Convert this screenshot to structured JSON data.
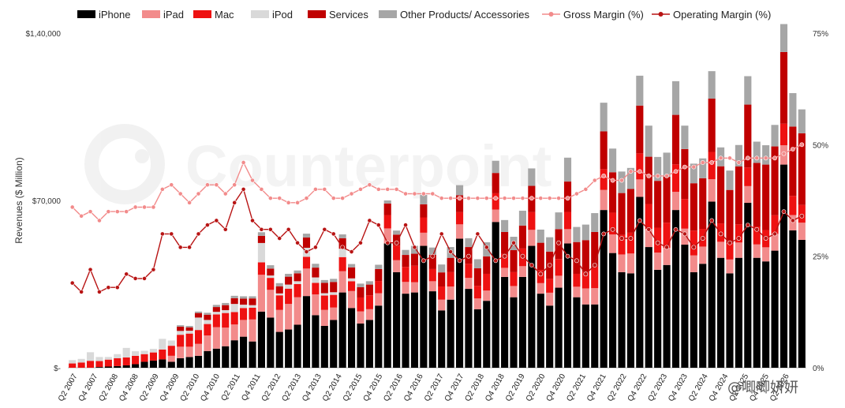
{
  "chart_data": {
    "type": "bar",
    "ylabel": "Revenues ($ Million)",
    "y_ticks": [
      "$-",
      "$70,000",
      "$1,40,000"
    ],
    "y2_ticks": [
      "0%",
      "25%",
      "50%",
      "75%"
    ],
    "ylim": [
      0,
      140000
    ],
    "y2lim": [
      0,
      75
    ],
    "x_tick_labels": [
      "Q2 2007",
      "Q4 2007",
      "Q2 2008",
      "Q4 2008",
      "Q2 2009",
      "Q4 2009",
      "Q2 2010",
      "Q4 2010",
      "Q2 2011",
      "Q4 2011",
      "Q2 2012",
      "Q2 2013",
      "Q4 2013",
      "Q2 2014",
      "Q2 2015",
      "Q4 2015",
      "Q2 2016",
      "Q4 2016",
      "Q2 2017",
      "Q4 2017",
      "Q2 2018",
      "Q4 2018",
      "Q2 2019",
      "Q2 2020",
      "Q4 2020",
      "Q2 2021",
      "Q4 2021",
      "Q2 2022",
      "Q4 2022",
      "Q2 2023",
      "Q4 2023",
      "Q2 2024",
      "Q4 2024",
      "Q2 2025",
      "Q4 2025",
      "Q2 2026"
    ],
    "legend": [
      {
        "label": "iPhone",
        "color": "#000000",
        "kind": "bar"
      },
      {
        "label": "iPad",
        "color": "#f28b8b",
        "kind": "bar"
      },
      {
        "label": "Mac",
        "color": "#ee1111",
        "kind": "bar"
      },
      {
        "label": "iPod",
        "color": "#d9d9d9",
        "kind": "bar"
      },
      {
        "label": "Services",
        "color": "#c00000",
        "kind": "bar"
      },
      {
        "label": "Other Products/ Accessories",
        "color": "#a6a6a6",
        "kind": "bar"
      },
      {
        "label": "Gross Margin (%)",
        "color": "#f28b8b",
        "kind": "line"
      },
      {
        "label": "Operating Margin (%)",
        "color": "#b81414",
        "kind": "line"
      }
    ],
    "series": [
      {
        "name": "iPhone",
        "color": "#000000",
        "values": [
          0,
          0,
          0,
          300,
          500,
          700,
          1000,
          1500,
          2500,
          3000,
          3500,
          2500,
          4000,
          4500,
          5000,
          7000,
          8000,
          9000,
          11500,
          13000,
          11000,
          23500,
          21000,
          15000,
          16000,
          18000,
          30000,
          22000,
          17500,
          20000,
          31500,
          25000,
          18500,
          20000,
          26000,
          52000,
          40000,
          31000,
          31500,
          51000,
          32000,
          24000,
          28500,
          54000,
          33000,
          24500,
          28000,
          61000,
          38000,
          29500,
          38000,
          51000,
          31000,
          26000,
          33500,
          52000,
          29500,
          26500,
          26500,
          66000,
          48000,
          40000,
          39500,
          71500,
          50500,
          41000,
          43000,
          66000,
          51500,
          40000,
          43500,
          69500,
          46000,
          39500,
          46000,
          69000,
          46000,
          44500,
          49000,
          85000,
          57500,
          53500
        ]
      },
      {
        "name": "iPad",
        "color": "#f28b8b",
        "values": [
          0,
          0,
          0,
          0,
          0,
          0,
          0,
          0,
          0,
          0,
          0,
          2500,
          4800,
          4300,
          5000,
          6500,
          9000,
          7800,
          6600,
          7000,
          9200,
          15400,
          11600,
          9200,
          10700,
          11500,
          11500,
          8700,
          6700,
          5200,
          8900,
          7100,
          5100,
          4500,
          5200,
          6300,
          5000,
          4900,
          4300,
          5500,
          4200,
          4500,
          5500,
          6000,
          4600,
          4500,
          4300,
          5200,
          3800,
          4700,
          4500,
          6700,
          4400,
          5400,
          5000,
          6000,
          4400,
          6700,
          6800,
          8400,
          7800,
          7400,
          8300,
          7300,
          7600,
          7200,
          7200,
          7600,
          6700,
          7000,
          7200,
          9400,
          6700,
          5800,
          6400,
          7000,
          5600,
          5900,
          7000,
          8100,
          6400,
          7200
        ]
      },
      {
        "name": "Mac",
        "color": "#ee1111",
        "values": [
          1800,
          2200,
          2900,
          2500,
          2900,
          3300,
          3300,
          3500,
          3200,
          3400,
          4100,
          4200,
          5000,
          5500,
          5800,
          4800,
          5300,
          6100,
          5200,
          5000,
          4900,
          5200,
          5000,
          6100,
          6400,
          5500,
          4900,
          4800,
          6000,
          5300,
          5900,
          4100,
          5800,
          5800,
          5100,
          5600,
          6100,
          6300,
          6900,
          6400,
          5100,
          5500,
          6000,
          5100,
          5900,
          5300,
          7000,
          6800,
          5800,
          5800,
          7400,
          7400,
          5500,
          5800,
          7000,
          7200,
          5400,
          7000,
          9000,
          8700,
          9100,
          8200,
          8700,
          10900,
          10400,
          10400,
          10500,
          11500,
          12400,
          10400,
          7400,
          11400,
          7700,
          6800,
          7600,
          7800,
          7500,
          7200,
          7800,
          9000,
          8000,
          7400
        ]
      },
      {
        "name": "iPod",
        "color": "#d9d9d9",
        "values": [
          1400,
          1500,
          3600,
          1700,
          1100,
          1700,
          4000,
          1900,
          1400,
          1500,
          4500,
          2200,
          1600,
          1200,
          5200,
          1700,
          1100,
          1200,
          3400,
          1400,
          1100,
          8100,
          1000,
          800,
          1700,
          1200,
          3800,
          2300,
          1000,
          1100,
          3500,
          1200,
          0,
          0,
          0,
          0,
          0,
          0,
          0,
          0,
          0,
          0,
          0,
          0,
          0,
          0,
          0,
          0,
          0,
          0,
          0,
          0,
          0,
          0,
          0,
          0,
          0,
          0,
          0,
          0,
          0,
          0,
          0,
          0,
          0,
          0,
          0,
          0,
          0,
          0,
          0,
          0,
          0,
          0,
          0,
          0,
          0,
          0,
          0,
          0,
          0,
          0
        ]
      },
      {
        "name": "Services",
        "color": "#c00000",
        "values": [
          0,
          0,
          0,
          0,
          0,
          0,
          0,
          0,
          0,
          0,
          0,
          0,
          1800,
          1400,
          1900,
          2200,
          2000,
          2100,
          2400,
          2500,
          2800,
          3000,
          2900,
          3000,
          3300,
          3300,
          4300,
          4100,
          4300,
          4300,
          4400,
          4600,
          4300,
          4500,
          5000,
          4800,
          4600,
          5000,
          5000,
          5500,
          6000,
          5900,
          6000,
          7100,
          7000,
          7300,
          7300,
          8500,
          9200,
          9200,
          9600,
          11000,
          11400,
          11400,
          12500,
          12700,
          13300,
          13200,
          14500,
          15800,
          16900,
          17500,
          18300,
          20000,
          19800,
          19600,
          19200,
          20700,
          20900,
          19800,
          21200,
          22300,
          23900,
          22300,
          24200,
          26300,
          26600,
          27400,
          28800,
          30000,
          29000,
          30000
        ]
      },
      {
        "name": "Other Products/ Accessories",
        "color": "#a6a6a6",
        "values": [
          0,
          0,
          0,
          0,
          0,
          0,
          0,
          0,
          0,
          0,
          0,
          0,
          600,
          600,
          600,
          800,
          900,
          900,
          1000,
          1000,
          900,
          1500,
          1400,
          1300,
          1200,
          1200,
          1600,
          1600,
          1200,
          1300,
          1600,
          1400,
          1500,
          1400,
          1800,
          1300,
          1700,
          2100,
          3300,
          3900,
          3000,
          3300,
          4500,
          4200,
          3700,
          3800,
          5900,
          5100,
          5000,
          5600,
          6200,
          7300,
          5500,
          6000,
          7000,
          10000,
          6300,
          6500,
          7900,
          12000,
          9900,
          9000,
          8800,
          12500,
          13000,
          10000,
          10100,
          14100,
          9800,
          8200,
          8300,
          11500,
          7900,
          8100,
          9000,
          11900,
          8900,
          8100,
          9000,
          11700,
          14000,
          10000
        ]
      },
      {
        "name": "Gross Margin (%)",
        "color": "#f28b8b",
        "values": [
          36,
          34,
          35,
          33,
          35,
          35,
          35,
          36,
          36,
          36,
          40,
          41,
          39,
          37,
          39,
          41,
          41,
          39,
          41,
          46,
          42,
          40,
          38,
          38,
          37,
          37,
          38,
          40,
          40,
          38,
          38,
          39,
          40,
          41,
          40,
          40,
          40,
          39,
          39,
          39,
          39,
          38,
          38,
          38,
          38,
          38,
          38,
          38,
          38,
          38,
          38,
          38,
          38,
          38,
          38,
          38,
          39,
          40,
          42,
          43,
          42,
          42,
          44,
          44,
          43,
          43,
          43,
          44,
          45,
          45,
          46,
          46,
          47,
          47,
          46,
          47,
          47,
          47,
          47,
          48,
          49,
          50
        ]
      },
      {
        "name": "Operating Margin (%)",
        "color": "#b81414",
        "values": [
          19,
          17,
          22,
          17,
          18,
          18,
          21,
          20,
          20,
          22,
          30,
          30,
          27,
          27,
          30,
          32,
          33,
          31,
          37,
          40,
          33,
          31,
          31,
          29,
          31,
          28,
          26,
          27,
          31,
          30,
          27,
          26,
          28,
          33,
          32,
          28,
          28,
          32,
          27,
          24,
          25,
          30,
          26,
          24,
          25,
          30,
          27,
          24,
          25,
          28,
          25,
          23,
          21,
          23,
          28,
          25,
          24,
          21,
          23,
          30,
          31,
          29,
          29,
          33,
          31,
          28,
          27,
          31,
          30,
          27,
          29,
          33,
          30,
          28,
          29,
          32,
          31,
          29,
          30,
          35,
          33,
          34
        ]
      }
    ]
  },
  "watermark": {
    "text": "Counterpoint",
    "overlay": "@唧唧妍妍"
  }
}
